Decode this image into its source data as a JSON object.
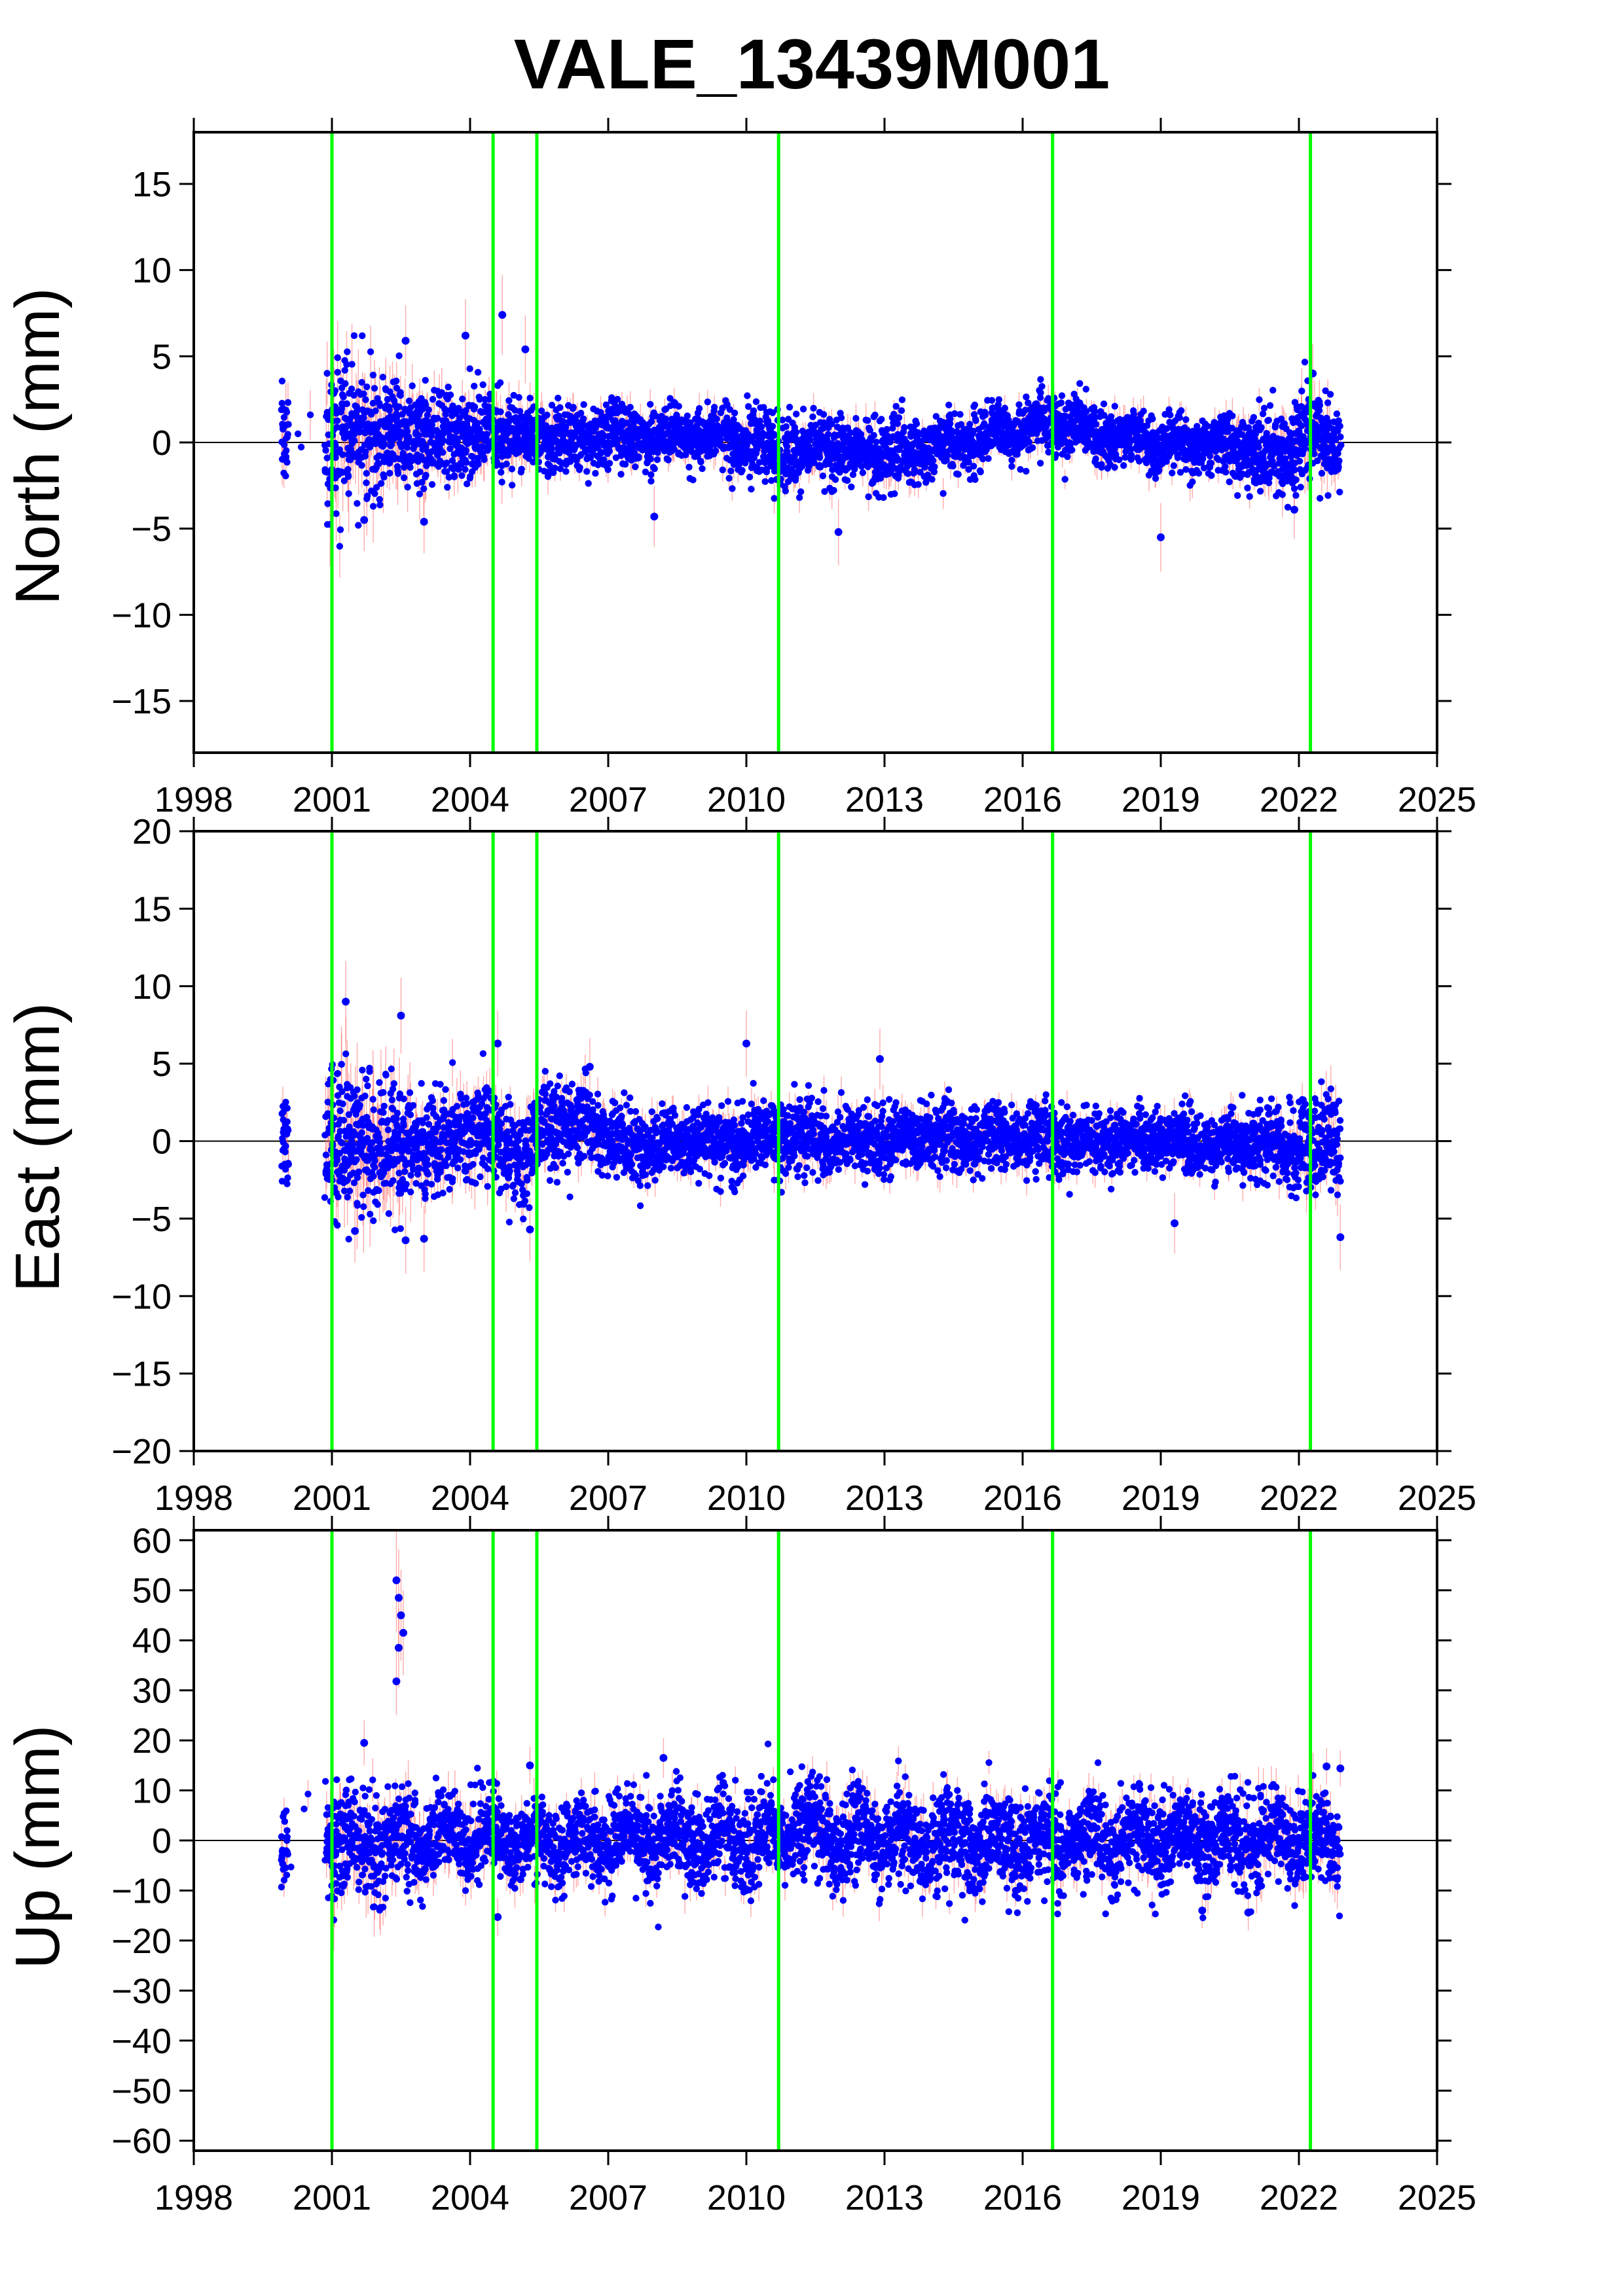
{
  "title": "VALE_13439M001",
  "colors": {
    "point": "#0000ff",
    "error_bar": "#ff6666",
    "event_line": "#00ff00",
    "zero_line": "#000000",
    "frame": "#000000"
  },
  "chart_data": [
    {
      "type": "scatter",
      "panel": "north",
      "ylabel": "North (mm)",
      "xlim": [
        1998,
        2025
      ],
      "ylim": [
        -18,
        18
      ],
      "xticks": [
        1998,
        2001,
        2004,
        2007,
        2010,
        2013,
        2016,
        2019,
        2022,
        2025
      ],
      "yticks": [
        -15,
        -10,
        -5,
        0,
        5,
        10,
        15
      ],
      "grid": false,
      "zero_line": true,
      "events": [
        2001.0,
        2004.5,
        2005.45,
        2010.7,
        2016.65,
        2022.25
      ],
      "series": [
        {
          "values_profile": [
            [
              1999.9,
              0.5,
              1.8,
              1.2
            ],
            [
              2000.5,
              0.0,
              1.0,
              1.5
            ],
            [
              2001.0,
              0.0,
              2.2,
              2.0
            ],
            [
              2002.0,
              0.4,
              1.8,
              1.8
            ],
            [
              2003.0,
              0.5,
              1.4,
              1.2
            ],
            [
              2004.5,
              0.6,
              1.3,
              1.1
            ],
            [
              2005.5,
              0.2,
              1.0,
              0.9
            ],
            [
              2007.0,
              0.3,
              0.9,
              0.8
            ],
            [
              2009.0,
              0.4,
              0.8,
              0.7
            ],
            [
              2010.7,
              -0.5,
              1.1,
              0.8
            ],
            [
              2012.0,
              -0.3,
              1.0,
              0.8
            ],
            [
              2013.5,
              -0.8,
              0.9,
              0.7
            ],
            [
              2015.0,
              0.3,
              0.9,
              0.7
            ],
            [
              2016.6,
              1.1,
              0.9,
              0.7
            ],
            [
              2018.0,
              0.2,
              0.8,
              0.7
            ],
            [
              2020.5,
              -0.2,
              0.9,
              0.8
            ],
            [
              2021.6,
              -1.0,
              1.2,
              1.0
            ],
            [
              2022.25,
              0.8,
              1.4,
              1.2
            ],
            [
              2022.9,
              -0.3,
              1.2,
              1.1
            ]
          ],
          "outliers": [
            [
              2002.6,
              5.9
            ],
            [
              2003.0,
              -4.6
            ],
            [
              2003.9,
              6.2
            ],
            [
              2004.7,
              7.4
            ],
            [
              2005.2,
              5.4
            ],
            [
              2001.7,
              -4.5
            ],
            [
              2008.0,
              -4.3
            ],
            [
              2012.0,
              -5.2
            ],
            [
              2019.0,
              -5.5
            ],
            [
              2021.9,
              -3.9
            ],
            [
              2022.3,
              4.0
            ]
          ]
        }
      ]
    },
    {
      "type": "scatter",
      "panel": "east",
      "ylabel": "East (mm)",
      "xlim": [
        1998,
        2025
      ],
      "ylim": [
        -20,
        20
      ],
      "xticks": [
        1998,
        2001,
        2004,
        2007,
        2010,
        2013,
        2016,
        2019,
        2022,
        2025
      ],
      "yticks": [
        -20,
        -15,
        -10,
        -5,
        0,
        5,
        10,
        15,
        20
      ],
      "grid": false,
      "zero_line": true,
      "events": [
        2001.0,
        2004.5,
        2005.45,
        2010.7,
        2016.65,
        2022.25
      ],
      "series": [
        {
          "values_profile": [
            [
              1999.9,
              0.5,
              1.5,
              1.2
            ],
            [
              2000.5,
              0.0,
              1.0,
              1.5
            ],
            [
              2001.0,
              0.0,
              2.6,
              2.4
            ],
            [
              2002.0,
              -0.3,
              2.3,
              2.5
            ],
            [
              2003.0,
              0.0,
              1.6,
              1.6
            ],
            [
              2004.5,
              0.5,
              1.6,
              1.3
            ],
            [
              2005.2,
              -1.5,
              1.8,
              1.4
            ],
            [
              2005.6,
              1.0,
              1.6,
              1.2
            ],
            [
              2006.6,
              1.3,
              1.3,
              1.0
            ],
            [
              2007.5,
              -0.5,
              1.1,
              0.9
            ],
            [
              2009.0,
              0.0,
              1.1,
              0.9
            ],
            [
              2010.7,
              0.3,
              1.2,
              0.9
            ],
            [
              2012.0,
              -0.2,
              1.1,
              0.9
            ],
            [
              2014.0,
              0.4,
              1.1,
              0.9
            ],
            [
              2016.0,
              0.0,
              1.1,
              0.9
            ],
            [
              2018.0,
              0.0,
              1.0,
              0.8
            ],
            [
              2020.0,
              0.0,
              1.0,
              0.8
            ],
            [
              2021.5,
              -0.3,
              1.2,
              0.9
            ],
            [
              2022.2,
              -0.5,
              1.6,
              1.2
            ],
            [
              2022.9,
              0.2,
              1.6,
              1.3
            ]
          ],
          "outliers": [
            [
              2001.3,
              9.0
            ],
            [
              2002.5,
              8.1
            ],
            [
              2002.6,
              -6.4
            ],
            [
              2001.5,
              -5.8
            ],
            [
              2003.0,
              -6.3
            ],
            [
              2005.3,
              -5.7
            ],
            [
              2004.6,
              6.3
            ],
            [
              2010.0,
              6.3
            ],
            [
              2012.9,
              5.3
            ],
            [
              2019.3,
              -5.3
            ],
            [
              2022.9,
              -6.2
            ],
            [
              2006.6,
              4.8
            ]
          ]
        }
      ]
    },
    {
      "type": "scatter",
      "panel": "up",
      "ylabel": "Up (mm)",
      "xlim": [
        1998,
        2025
      ],
      "ylim": [
        -62,
        62
      ],
      "xticks": [
        1998,
        2001,
        2004,
        2007,
        2010,
        2013,
        2016,
        2019,
        2022,
        2025
      ],
      "yticks": [
        -60,
        -50,
        -40,
        -30,
        -20,
        -10,
        0,
        10,
        20,
        30,
        40,
        50,
        60
      ],
      "grid": false,
      "zero_line": true,
      "events": [
        2001.0,
        2004.5,
        2005.45,
        2010.7,
        2016.65,
        2022.25
      ],
      "series": [
        {
          "values_profile": [
            [
              1999.9,
              0.0,
              4.0,
              3.5
            ],
            [
              2000.5,
              0.0,
              3.0,
              4.0
            ],
            [
              2001.0,
              0.0,
              5.5,
              5.0
            ],
            [
              2002.0,
              0.0,
              5.5,
              5.0
            ],
            [
              2003.0,
              0.0,
              4.5,
              4.0
            ],
            [
              2004.5,
              0.0,
              4.0,
              3.5
            ],
            [
              2006.0,
              0.0,
              4.0,
              3.0
            ],
            [
              2008.0,
              0.0,
              4.5,
              3.0
            ],
            [
              2010.0,
              0.5,
              4.5,
              3.0
            ],
            [
              2011.5,
              2.0,
              4.5,
              3.0
            ],
            [
              2013.0,
              0.0,
              4.5,
              3.0
            ],
            [
              2015.0,
              0.0,
              5.0,
              3.0
            ],
            [
              2017.0,
              0.0,
              4.5,
              3.0
            ],
            [
              2019.0,
              0.0,
              4.5,
              3.0
            ],
            [
              2021.0,
              0.5,
              4.5,
              3.5
            ],
            [
              2022.9,
              0.0,
              5.0,
              4.0
            ]
          ],
          "outliers": [
            [
              2002.4,
              52.0
            ],
            [
              2002.45,
              48.5
            ],
            [
              2002.5,
              45.0
            ],
            [
              2002.55,
              41.5
            ],
            [
              2002.45,
              38.5
            ],
            [
              2002.4,
              31.8
            ],
            [
              2001.7,
              19.5
            ],
            [
              2008.2,
              16.5
            ],
            [
              2004.6,
              -15.3
            ],
            [
              2005.3,
              15.0
            ],
            [
              2019.9,
              -14.0
            ],
            [
              2020.9,
              -14.4
            ],
            [
              2022.6,
              14.8
            ],
            [
              2022.9,
              14.4
            ]
          ]
        }
      ]
    }
  ]
}
